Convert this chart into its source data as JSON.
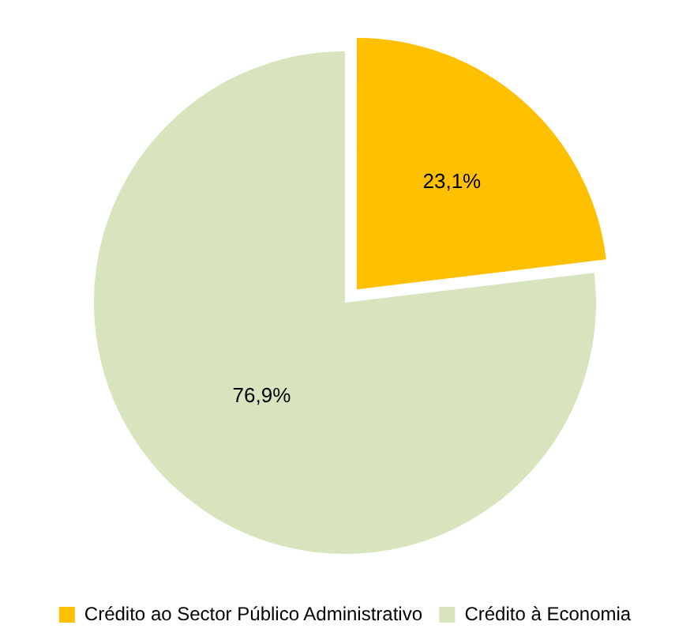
{
  "chart_data": {
    "type": "pie",
    "categories": [
      "Crédito ao Sector Público Administrativo",
      "Crédito à Economia"
    ],
    "values": [
      23.1,
      76.9
    ],
    "colors": [
      "#ffc000",
      "#d7e4bd"
    ],
    "value_labels": [
      "23,1%",
      "76,9%"
    ],
    "legend": "bottom"
  }
}
